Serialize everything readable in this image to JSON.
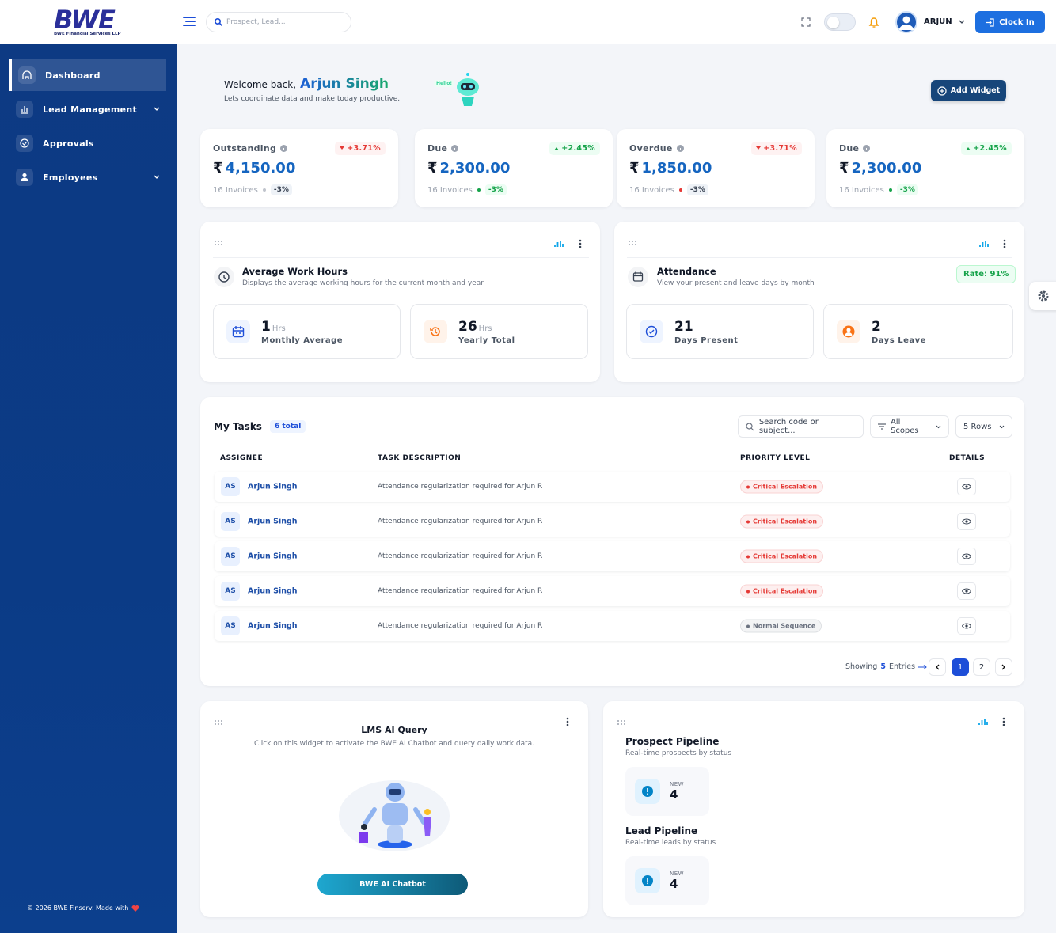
{
  "header": {
    "logo": "BWE",
    "logo_sub": "BWE Financial Services LLP",
    "search_placeholder": "Prospect, Lead...",
    "user": "ARJUN",
    "clock_in": "Clock In"
  },
  "sidebar": {
    "items": [
      "Dashboard",
      "Lead Management",
      "Approvals",
      "Employees"
    ],
    "footer": "© 2026 BWE Finserv. Made with"
  },
  "welcome": {
    "greeting": "Welcome back,",
    "name": "Arjun Singh",
    "subtitle": "Lets coordinate data and make today productive.",
    "bot_label": "Hello!",
    "add_widget": "Add Widget"
  },
  "stats": [
    {
      "label": "Outstanding",
      "change": "+3.71%",
      "currency": "₹",
      "amount": "4,150.00",
      "invoices": "16 Invoices",
      "delta": "-3%"
    },
    {
      "label": "Due",
      "change": "+2.45%",
      "currency": "₹",
      "amount": "2,300.00",
      "invoices": "16 Invoices",
      "delta": "-3%"
    },
    {
      "label": "Overdue",
      "change": "+3.71%",
      "currency": "₹",
      "amount": "1,850.00",
      "invoices": "16 Invoices",
      "delta": "-3%"
    },
    {
      "label": "Due",
      "change": "+2.45%",
      "currency": "₹",
      "amount": "2,300.00",
      "invoices": "16 Invoices",
      "delta": "-3%"
    }
  ],
  "stat_trend_colors": [
    "#e53935",
    "#16a34a",
    "#e53935",
    "#16a34a"
  ],
  "work_hours": {
    "title": "Average Work Hours",
    "description": "Displays the average working hours for the current month and year",
    "metrics": [
      {
        "value": "1",
        "unit": "Hrs",
        "label": "Monthly Average"
      },
      {
        "value": "26",
        "unit": "Hrs",
        "label": "Yearly Total"
      }
    ]
  },
  "attendance": {
    "title": "Attendance",
    "description": "View your present and leave days by month",
    "rate": "Rate: 91%",
    "metrics": [
      {
        "value": "21",
        "label": "Days Present"
      },
      {
        "value": "2",
        "label": "Days Leave"
      }
    ]
  },
  "tasks": {
    "title": "My Tasks",
    "count": "6 total",
    "search_placeholder": "Search code or subject...",
    "scope": "All Scopes",
    "rows_option": "5 Rows",
    "columns": [
      "ASSIGNEE",
      "TASK DESCRIPTION",
      "PRIORITY LEVEL",
      "DETAILS"
    ],
    "rows": [
      {
        "initials": "AS",
        "name": "Arjun Singh",
        "task": "Attendance regularization required for Arjun R",
        "priority": "Critical Escalation",
        "color": "#e53935"
      },
      {
        "initials": "AS",
        "name": "Arjun Singh",
        "task": "Attendance regularization required for Arjun R",
        "priority": "Critical Escalation",
        "color": "#e53935"
      },
      {
        "initials": "AS",
        "name": "Arjun Singh",
        "task": "Attendance regularization required for Arjun R",
        "priority": "Critical Escalation",
        "color": "#e53935"
      },
      {
        "initials": "AS",
        "name": "Arjun Singh",
        "task": "Attendance regularization required for Arjun R",
        "priority": "Critical Escalation",
        "color": "#e53935"
      },
      {
        "initials": "AS",
        "name": "Arjun Singh",
        "task": "Attendance regularization required for Arjun R",
        "priority": "Normal Sequence",
        "color": "#6b7280"
      }
    ],
    "showing": "Showing",
    "shown": "5",
    "entries": "Entries",
    "pages": [
      "1",
      "2"
    ]
  },
  "lms": {
    "title": "LMS AI Query",
    "description": "Click on this widget to activate the BWE AI Chatbot and query daily work data.",
    "button": "BWE AI Chatbot"
  },
  "pipelines": [
    {
      "title": "Prospect Pipeline",
      "subtitle": "Real-time prospects by status",
      "status": "NEW",
      "count": "4"
    },
    {
      "title": "Lead Pipeline",
      "subtitle": "Real-time leads by status",
      "status": "NEW",
      "count": "4"
    }
  ]
}
